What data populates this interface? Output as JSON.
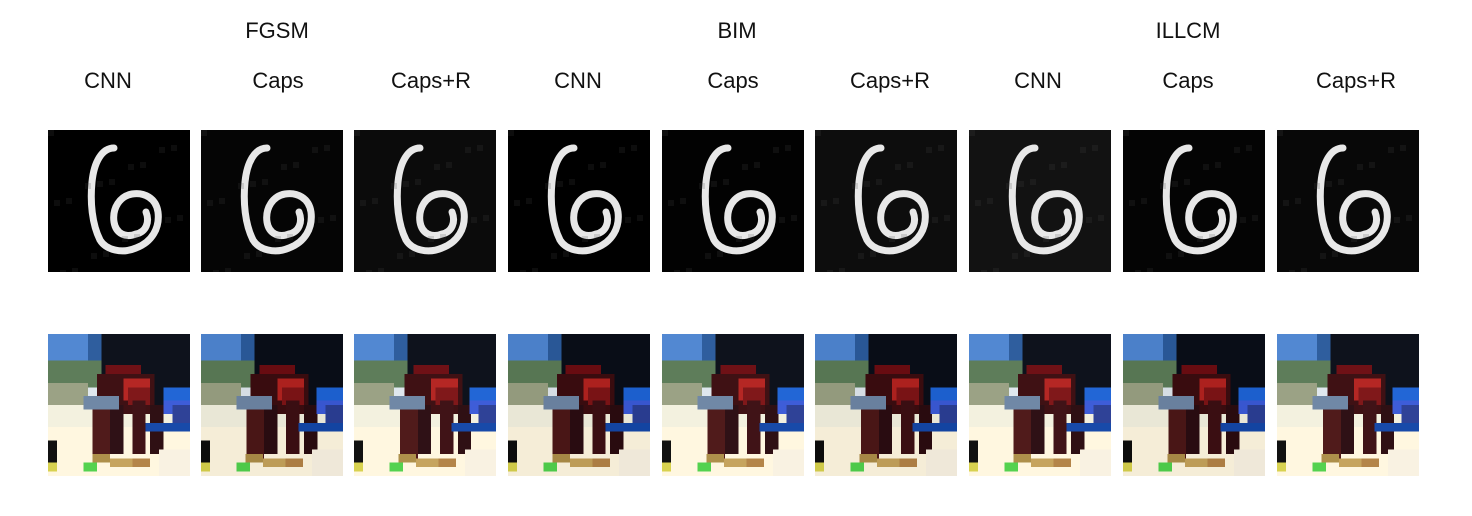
{
  "attack_groups": [
    {
      "label": "FGSM"
    },
    {
      "label": "BIM"
    },
    {
      "label": "ILLCM"
    }
  ],
  "model_labels": [
    "CNN",
    "Caps",
    "Caps+R",
    "CNN",
    "Caps",
    "Caps+R",
    "CNN",
    "Caps",
    "Caps+R"
  ],
  "rows": [
    {
      "name": "mnist-digit-six",
      "description_tiles": 9
    },
    {
      "name": "cifar-horse-rider",
      "description_tiles": 9
    }
  ],
  "colors": {
    "mnist_bg": [
      "#000000",
      "#050505",
      "#0b0b0b",
      "#000000",
      "#020202",
      "#0d0d0d",
      "#121212",
      "#040404",
      "#080808"
    ],
    "digit_stroke": "#f4f4f4"
  }
}
